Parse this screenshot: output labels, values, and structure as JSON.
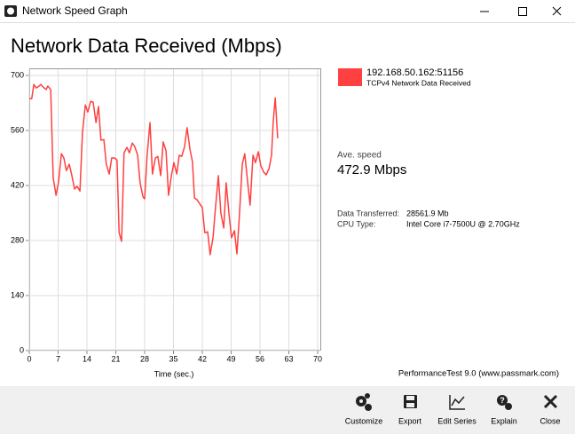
{
  "window": {
    "title": "Network Speed Graph"
  },
  "chart_data": {
    "type": "line",
    "title": "Network Data Received (Mbps)",
    "x_label": "Time (sec.)",
    "x": [
      0,
      0.6,
      1.1,
      1.7,
      2.4,
      2.8,
      3.4,
      4.1,
      4.5,
      5.2,
      5.8,
      6.5,
      7.1,
      7.8,
      8.4,
      9.0,
      9.7,
      10.3,
      11.0,
      11.6,
      12.3,
      12.9,
      13.6,
      14.2,
      14.9,
      15.5,
      16.2,
      16.8,
      17.4,
      18.1,
      18.7,
      19.4,
      20.0,
      20.7,
      21.3,
      21.8,
      22.4,
      23.0,
      23.7,
      24.3,
      25.0,
      25.6,
      26.3,
      26.9,
      27.6,
      28.0,
      28.6,
      29.3,
      29.9,
      30.6,
      31.2,
      31.9,
      32.5,
      33.2,
      33.8,
      34.5,
      35.1,
      35.8,
      36.4,
      37.0,
      37.7,
      38.3,
      39.0,
      39.6,
      40.1,
      40.7,
      41.4,
      42.0,
      42.6,
      43.3,
      43.9,
      44.6,
      45.2,
      45.9,
      46.5,
      47.2,
      47.8,
      48.5,
      49.1,
      49.8,
      50.4,
      51.0,
      51.7,
      52.3,
      53.0,
      53.6,
      54.3,
      54.9,
      55.6,
      56.2,
      56.9,
      57.5,
      58.2,
      58.8,
      59.2,
      59.7,
      60.3
    ],
    "series": [
      {
        "name": "192.168.50.162:51156",
        "description": "TCPv4 Network Data Received",
        "color": "#ff4040",
        "values": [
          641,
          641,
          677,
          668,
          673,
          677,
          670,
          664,
          673,
          664,
          440,
          395,
          429,
          501,
          490,
          458,
          474,
          447,
          411,
          418,
          406,
          553,
          625,
          607,
          634,
          632,
          580,
          621,
          535,
          537,
          474,
          449,
          490,
          490,
          485,
          300,
          278,
          503,
          517,
          503,
          528,
          519,
          497,
          427,
          391,
          386,
          497,
          580,
          449,
          490,
          494,
          445,
          531,
          508,
          395,
          445,
          478,
          449,
          497,
          494,
          519,
          567,
          512,
          481,
          388,
          384,
          373,
          364,
          300,
          302,
          244,
          287,
          364,
          445,
          350,
          312,
          427,
          345,
          287,
          305,
          246,
          343,
          474,
          501,
          429,
          370,
          497,
          478,
          506,
          470,
          454,
          447,
          463,
          497,
          580,
          643,
          540
        ]
      }
    ],
    "xlim": [
      0,
      70
    ],
    "xticks": [
      0,
      7,
      14,
      21,
      28,
      35,
      42,
      49,
      56,
      63,
      70
    ],
    "ylim": [
      0,
      700
    ],
    "yticks": [
      0,
      140,
      280,
      420,
      560,
      700
    ],
    "grid": true
  },
  "stats": {
    "ave_speed_label": "Ave. speed",
    "ave_speed": "472.9 Mbps",
    "rows": [
      [
        "Data Transferred:",
        "28561.9 Mb"
      ],
      [
        "CPU Type:",
        "Intel Core i7-7500U @ 2.70GHz"
      ]
    ]
  },
  "footer": "PerformanceTest 9.0 (www.passmark.com)",
  "toolbar": [
    "Customize",
    "Export",
    "Edit Series",
    "Explain",
    "Close"
  ]
}
